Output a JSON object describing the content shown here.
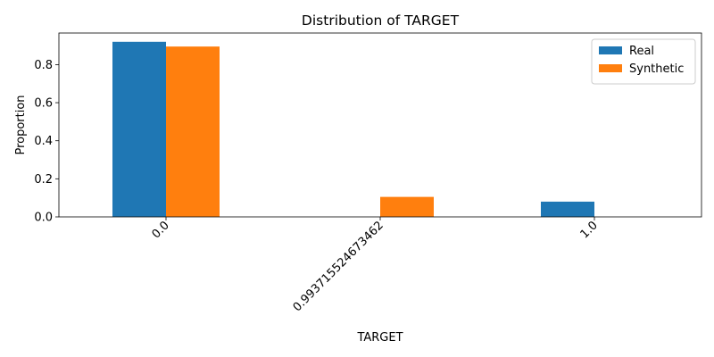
{
  "chart_data": {
    "type": "bar",
    "title": "Distribution of TARGET",
    "xlabel": "TARGET",
    "ylabel": "Proportion",
    "categories": [
      "0.0",
      "0.993715524673462",
      "1.0"
    ],
    "series": [
      {
        "name": "Real",
        "color": "#1f77b4",
        "values": [
          0.92,
          0.0,
          0.08
        ]
      },
      {
        "name": "Synthetic",
        "color": "#ff7f0e",
        "values": [
          0.895,
          0.105,
          0.0
        ]
      }
    ],
    "ylim": [
      0,
      0.966
    ],
    "yticks": [
      "0.0",
      "0.2",
      "0.4",
      "0.6",
      "0.8"
    ],
    "legend": "top-right",
    "grid": false
  }
}
